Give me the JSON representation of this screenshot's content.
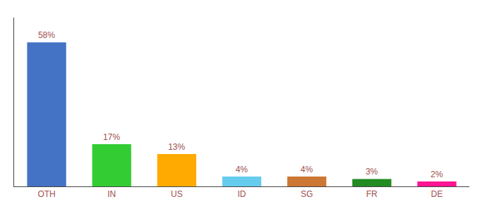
{
  "chart_data": {
    "type": "bar",
    "categories": [
      "OTH",
      "IN",
      "US",
      "ID",
      "SG",
      "FR",
      "DE"
    ],
    "values": [
      58,
      17,
      13,
      4,
      4,
      3,
      2
    ],
    "value_labels": [
      "58%",
      "17%",
      "13%",
      "4%",
      "4%",
      "3%",
      "2%"
    ],
    "colors": [
      "#4472c4",
      "#33cc33",
      "#ffaa00",
      "#66ccee",
      "#cc7733",
      "#228b22",
      "#ff1493"
    ],
    "ylim": [
      0,
      68
    ],
    "data_labels": true,
    "tick_labels": "x",
    "grid": false
  }
}
